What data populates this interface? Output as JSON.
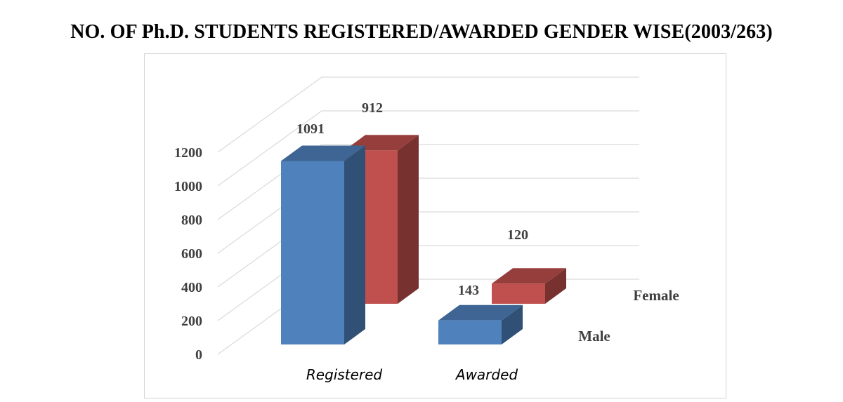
{
  "chart_data": {
    "type": "bar",
    "title": "NO. OF Ph.D. STUDENTS REGISTERED/AWARDED GENDER WISE(2003/263)",
    "categories": [
      "Registered",
      "Awarded"
    ],
    "series": [
      {
        "name": "Male",
        "values": [
          1091,
          143
        ],
        "color": "#4f81bd"
      },
      {
        "name": "Female",
        "values": [
          912,
          120
        ],
        "color": "#c0504d"
      }
    ],
    "yticks": [
      "0",
      "200",
      "400",
      "600",
      "800",
      "1000",
      "1200"
    ],
    "ylim": [
      0,
      1200
    ],
    "style": "3d-column",
    "grid": true
  }
}
